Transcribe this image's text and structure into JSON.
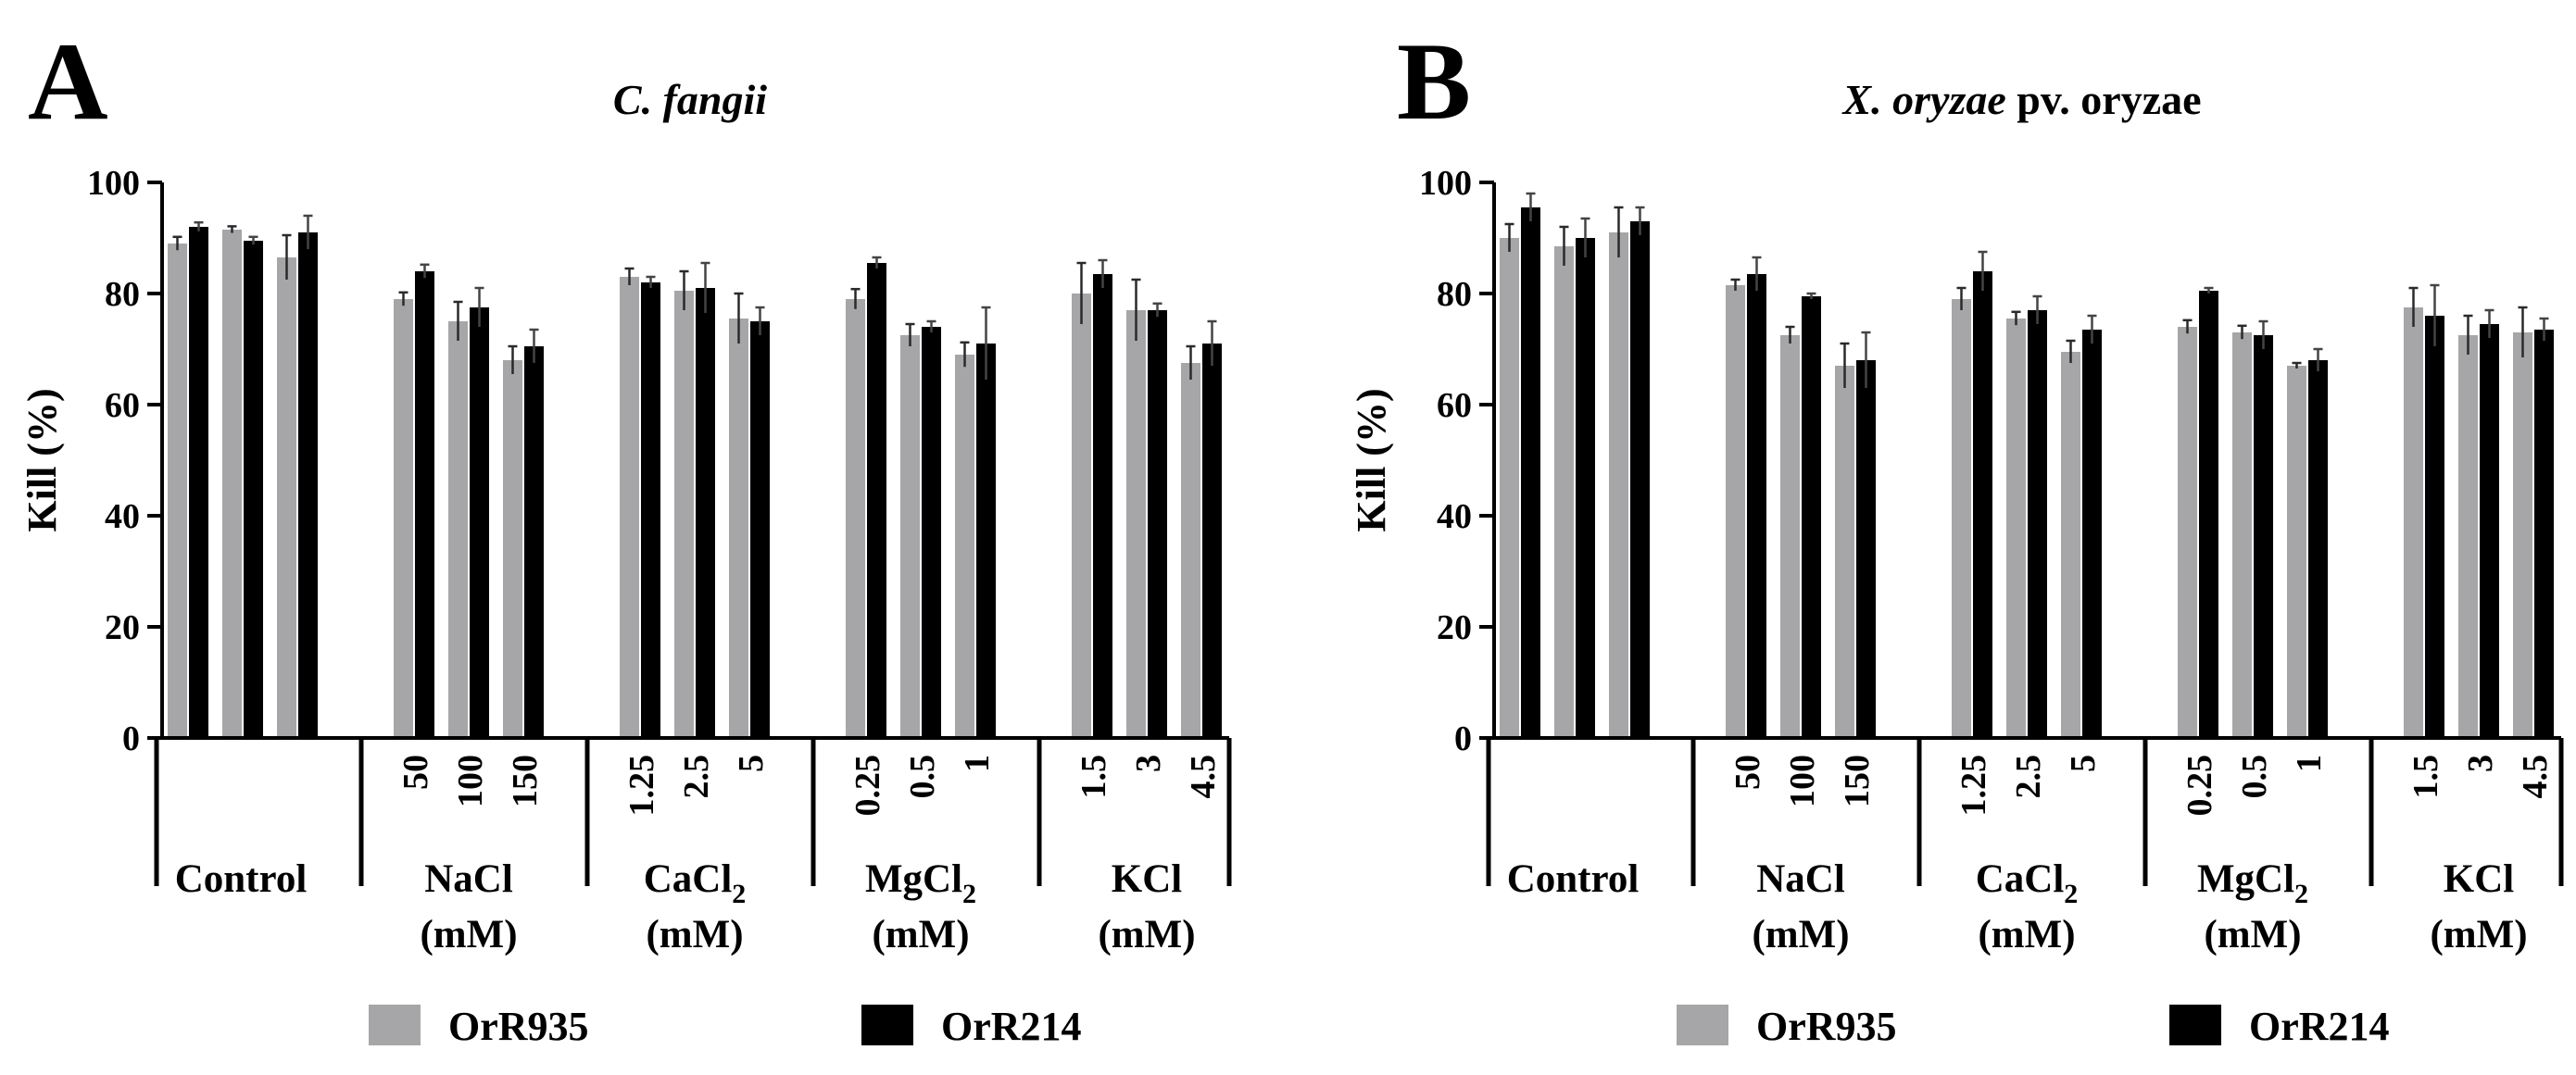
{
  "legend": {
    "items": [
      {
        "name": "OrR935",
        "color": "#a6a6a8"
      },
      {
        "name": "OrR214",
        "color": "#000000"
      }
    ]
  },
  "chart_data": [
    {
      "type": "bar",
      "panel": "A",
      "title": "C. fangii",
      "title_italic": "C. fangii",
      "title_rest": "",
      "ylabel": "Kill (%)",
      "ylim": [
        0,
        100
      ],
      "yticks": [
        0,
        20,
        40,
        60,
        80,
        100
      ],
      "groups": [
        {
          "label": "Control",
          "label_sub": "",
          "unit": "",
          "ticks": [
            "",
            "",
            ""
          ]
        },
        {
          "label": "NaCl",
          "label_sub": "",
          "unit": "(mM)",
          "ticks": [
            "50",
            "100",
            "150"
          ]
        },
        {
          "label": "CaCl",
          "label_sub": "2",
          "unit": "(mM)",
          "ticks": [
            "1.25",
            "2.5",
            "5"
          ]
        },
        {
          "label": "MgCl",
          "label_sub": "2",
          "unit": "(mM)",
          "ticks": [
            "0.25",
            "0.5",
            "1"
          ]
        },
        {
          "label": "KCl",
          "label_sub": "",
          "unit": "(mM)",
          "ticks": [
            "1.5",
            "3",
            "4.5"
          ]
        }
      ],
      "series": [
        {
          "name": "OrR935",
          "color": "#a6a6a8",
          "values": [
            89,
            91.5,
            86.5,
            79,
            75,
            68,
            83,
            80.5,
            75.5,
            79,
            72.5,
            69,
            80,
            77,
            67.5
          ],
          "errors": [
            1.2,
            0.6,
            4,
            1.2,
            3.5,
            2.5,
            1.5,
            3.5,
            4.5,
            1.8,
            2,
            2.2,
            5.5,
            5.5,
            3
          ]
        },
        {
          "name": "OrR214",
          "color": "#000000",
          "values": [
            92,
            89.5,
            91,
            84,
            77.5,
            70.5,
            82,
            81,
            75,
            85.5,
            74,
            71,
            83.5,
            77,
            71
          ],
          "errors": [
            0.8,
            0.7,
            3,
            1.2,
            3.5,
            3,
            1,
            4.5,
            2.5,
            1,
            1,
            6.5,
            2.5,
            1.2,
            4
          ]
        }
      ]
    },
    {
      "type": "bar",
      "panel": "B",
      "title": "X. oryzae pv. oryzae",
      "title_italic": "X. oryzae",
      "title_rest": " pv. oryzae",
      "ylabel": "Kill (%)",
      "ylim": [
        0,
        100
      ],
      "yticks": [
        0,
        20,
        40,
        60,
        80,
        100
      ],
      "groups": [
        {
          "label": "Control",
          "label_sub": "",
          "unit": "",
          "ticks": [
            "",
            "",
            ""
          ]
        },
        {
          "label": "NaCl",
          "label_sub": "",
          "unit": "(mM)",
          "ticks": [
            "50",
            "100",
            "150"
          ]
        },
        {
          "label": "CaCl",
          "label_sub": "2",
          "unit": "(mM)",
          "ticks": [
            "1.25",
            "2.5",
            "5"
          ]
        },
        {
          "label": "MgCl",
          "label_sub": "2",
          "unit": "(mM)",
          "ticks": [
            "0.25",
            "0.5",
            "1"
          ]
        },
        {
          "label": "KCl",
          "label_sub": "",
          "unit": "(mM)",
          "ticks": [
            "1.5",
            "3",
            "4.5"
          ]
        }
      ],
      "series": [
        {
          "name": "OrR935",
          "color": "#a6a6a8",
          "values": [
            90,
            88.5,
            91,
            81.5,
            72.5,
            67,
            79,
            75.5,
            69.5,
            74,
            73,
            67,
            77.5,
            72.5,
            73
          ],
          "errors": [
            2.5,
            3.5,
            4.5,
            1,
            1.5,
            4,
            2,
            1.2,
            2,
            1.2,
            1.2,
            0.5,
            3.5,
            3.5,
            4.5
          ]
        },
        {
          "name": "OrR214",
          "color": "#000000",
          "values": [
            95.5,
            90,
            93,
            83.5,
            79.5,
            68,
            84,
            77,
            73.5,
            80.5,
            72.5,
            68,
            76,
            74.5,
            73.5
          ],
          "errors": [
            2.5,
            3.5,
            2.5,
            3,
            0.5,
            5,
            3.5,
            2.5,
            2.5,
            0.5,
            2.5,
            2,
            5.5,
            2.5,
            2
          ]
        }
      ]
    }
  ]
}
